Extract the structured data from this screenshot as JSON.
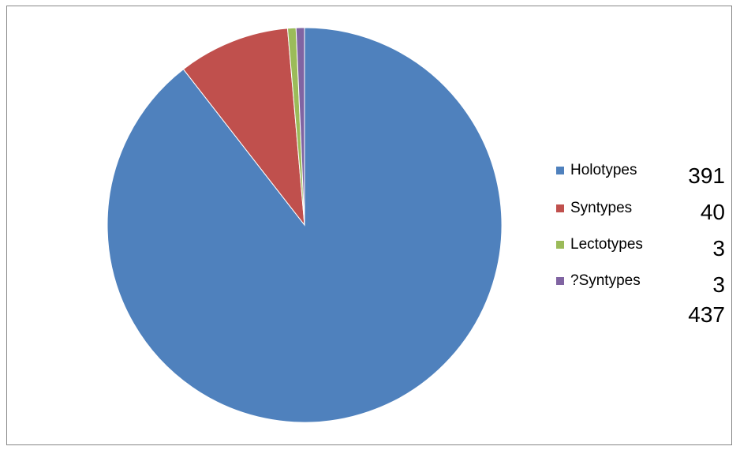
{
  "chart_data": {
    "type": "pie",
    "categories": [
      "Holotypes",
      "Syntypes",
      "Lectotypes",
      "?Syntypes"
    ],
    "values": [
      391,
      40,
      3,
      3
    ],
    "total": 437,
    "colors": [
      "#4F81BD",
      "#C0504D",
      "#9BBB59",
      "#8064A2"
    ],
    "legend": "right",
    "labels": {
      "counts": [
        "391",
        "40",
        "3",
        "3"
      ],
      "total": "437"
    }
  }
}
